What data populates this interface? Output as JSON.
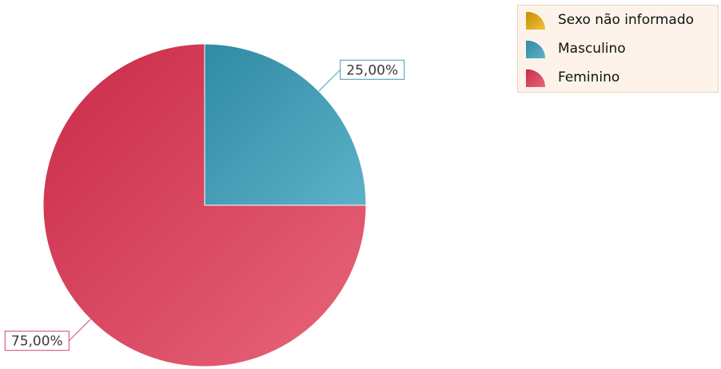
{
  "chart_data": {
    "type": "pie",
    "categories": [
      "Sexo não informado",
      "Masculino",
      "Feminino"
    ],
    "values": [
      0,
      25,
      75
    ],
    "value_labels": [
      "",
      "25,00%",
      "75,00%"
    ],
    "colors": [
      "#d9a400",
      "#3f9cb3",
      "#d94460"
    ],
    "legend": {
      "placement": "top-right"
    },
    "title": ""
  },
  "legend": {
    "items": [
      {
        "label": "Sexo não informado",
        "color": "#d9a400"
      },
      {
        "label": "Masculino",
        "color": "#3f9cb3"
      },
      {
        "label": "Feminino",
        "color": "#d94460"
      }
    ]
  }
}
